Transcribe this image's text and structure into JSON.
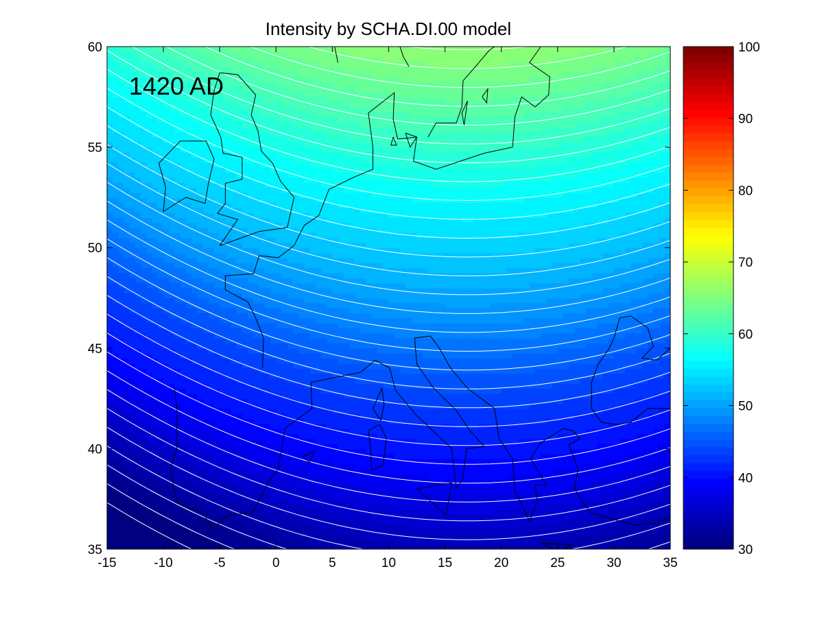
{
  "chart_data": {
    "type": "heatmap",
    "title": "Intensity by SCHA.DI.00 model",
    "annotation": "1420 AD",
    "xlim": [
      -15,
      35
    ],
    "ylim": [
      35,
      60
    ],
    "x_ticks": [
      "-15",
      "-10",
      "-5",
      "0",
      "5",
      "10",
      "15",
      "20",
      "25",
      "30",
      "35"
    ],
    "y_ticks": [
      "35",
      "40",
      "45",
      "50",
      "55",
      "60"
    ],
    "colorbar": {
      "colormap": "jet",
      "range": [
        30,
        100
      ],
      "ticks": [
        "30",
        "40",
        "50",
        "60",
        "70",
        "80",
        "90",
        "100"
      ]
    },
    "contour_interval": 1.2,
    "field_samples": [
      {
        "lon": -15,
        "lat": 35,
        "value": 35
      },
      {
        "lon": 10,
        "lat": 35,
        "value": 41
      },
      {
        "lon": 35,
        "lat": 35,
        "value": 41
      },
      {
        "lon": -15,
        "lat": 45,
        "value": 48
      },
      {
        "lon": 17,
        "lat": 45,
        "value": 51
      },
      {
        "lon": 35,
        "lat": 45,
        "value": 50
      },
      {
        "lon": -15,
        "lat": 50,
        "value": 55
      },
      {
        "lon": 17,
        "lat": 50,
        "value": 58
      },
      {
        "lon": 35,
        "lat": 50,
        "value": 57
      },
      {
        "lon": -15,
        "lat": 55,
        "value": 61
      },
      {
        "lon": 17,
        "lat": 55,
        "value": 64
      },
      {
        "lon": -15,
        "lat": 60,
        "value": 67
      },
      {
        "lon": 17,
        "lat": 60,
        "value": 69
      },
      {
        "lon": 35,
        "lat": 60,
        "value": 68
      }
    ],
    "coastlines": [
      [
        [
          -8,
          52.5
        ],
        [
          -10,
          51.8
        ],
        [
          -9.8,
          53
        ],
        [
          -10.4,
          54.2
        ],
        [
          -8.5,
          55.3
        ],
        [
          -6.2,
          55.3
        ],
        [
          -5.5,
          54.4
        ],
        [
          -6,
          53.2
        ],
        [
          -6.3,
          52.2
        ],
        [
          -8,
          52.5
        ]
      ],
      [
        [
          -5,
          50.1
        ],
        [
          -3.5,
          50.4
        ],
        [
          -1.5,
          50.8
        ],
        [
          1,
          51
        ],
        [
          1.6,
          52.5
        ],
        [
          0.4,
          53.3
        ],
        [
          -0.3,
          54.2
        ],
        [
          -1.3,
          54.8
        ],
        [
          -1.6,
          55.8
        ],
        [
          -2.2,
          56.6
        ],
        [
          -1.8,
          57.6
        ],
        [
          -3.4,
          58.6
        ],
        [
          -5,
          58.7
        ],
        [
          -5.5,
          57.8
        ],
        [
          -5.8,
          56.6
        ],
        [
          -4.9,
          55.5
        ],
        [
          -4.7,
          54.7
        ],
        [
          -3,
          54.5
        ],
        [
          -3,
          53.4
        ],
        [
          -4.5,
          53.2
        ],
        [
          -4.5,
          52.2
        ],
        [
          -5.2,
          51.7
        ],
        [
          -3.4,
          51.4
        ],
        [
          -5,
          50.1
        ]
      ],
      [
        [
          -9,
          43
        ],
        [
          -8.8,
          42
        ],
        [
          -8.8,
          40
        ],
        [
          -9.4,
          39
        ],
        [
          -8.8,
          37.3
        ],
        [
          -6.5,
          36.8
        ],
        [
          -5.6,
          36
        ],
        [
          -4.3,
          36.7
        ],
        [
          -2.1,
          36.8
        ],
        [
          -0.5,
          38.5
        ],
        [
          0.2,
          39
        ],
        [
          0.8,
          41
        ],
        [
          3.2,
          42
        ],
        [
          3.1,
          43.3
        ],
        [
          4.9,
          43.5
        ],
        [
          7.5,
          43.8
        ],
        [
          8.8,
          44.4
        ],
        [
          10.1,
          44
        ],
        [
          10.6,
          42.9
        ],
        [
          12.4,
          41.7
        ],
        [
          15.6,
          40
        ],
        [
          16,
          38
        ],
        [
          16.6,
          38.5
        ],
        [
          16.9,
          40
        ],
        [
          18.5,
          40.1
        ],
        [
          17.2,
          40.9
        ],
        [
          16,
          41.9
        ],
        [
          14,
          43
        ],
        [
          12.5,
          44.2
        ],
        [
          12.3,
          45.5
        ],
        [
          13.7,
          45.6
        ],
        [
          14.5,
          45
        ],
        [
          15.5,
          44
        ],
        [
          17,
          43
        ],
        [
          19.4,
          42
        ],
        [
          19.8,
          40.5
        ],
        [
          21,
          39.5
        ],
        [
          21.2,
          37.9
        ],
        [
          22.5,
          36.4
        ],
        [
          23.2,
          37.4
        ],
        [
          23,
          38.2
        ],
        [
          24,
          38.2
        ],
        [
          22.6,
          39.5
        ],
        [
          23.5,
          40.3
        ],
        [
          25.5,
          41
        ],
        [
          26.3,
          40.9
        ],
        [
          27,
          40.5
        ],
        [
          26,
          40.2
        ],
        [
          26.8,
          39
        ],
        [
          26.5,
          38
        ],
        [
          27.4,
          37.2
        ],
        [
          28,
          36.8
        ],
        [
          30.5,
          36.4
        ],
        [
          32,
          36.2
        ],
        [
          33.8,
          36.3
        ],
        [
          35,
          36.6
        ]
      ],
      [
        [
          -1.2,
          44
        ],
        [
          -1.1,
          45.5
        ],
        [
          -1.8,
          46.5
        ],
        [
          -2.5,
          47.3
        ],
        [
          -4.5,
          47.9
        ],
        [
          -4.5,
          48.6
        ],
        [
          -2,
          48.7
        ],
        [
          -1.5,
          49.6
        ],
        [
          0.2,
          49.5
        ],
        [
          1.6,
          50.1
        ],
        [
          2.5,
          51.1
        ],
        [
          3.8,
          51.6
        ],
        [
          4.7,
          52.9
        ],
        [
          6.9,
          53.5
        ],
        [
          8.6,
          53.9
        ],
        [
          8.6,
          55
        ],
        [
          8.2,
          56.7
        ],
        [
          10.5,
          57.7
        ],
        [
          10.4,
          56.4
        ],
        [
          10.8,
          55.4
        ],
        [
          12.5,
          55.5
        ],
        [
          12.2,
          54.3
        ],
        [
          14.2,
          53.9
        ],
        [
          18.5,
          54.7
        ],
        [
          21,
          55
        ],
        [
          21.2,
          56.5
        ],
        [
          21.8,
          57.5
        ],
        [
          23,
          57
        ],
        [
          24.2,
          57.6
        ],
        [
          24.3,
          58.5
        ],
        [
          22.5,
          59.2
        ],
        [
          23.5,
          60
        ]
      ],
      [
        [
          30,
          45.5
        ],
        [
          30.5,
          46.5
        ],
        [
          31.5,
          46.6
        ],
        [
          33,
          46
        ],
        [
          33.5,
          45.1
        ],
        [
          32.5,
          44.5
        ],
        [
          33.8,
          44.4
        ],
        [
          35,
          45
        ]
      ],
      [
        [
          30,
          45.5
        ],
        [
          29.6,
          45
        ],
        [
          28.6,
          44.2
        ],
        [
          28,
          43.3
        ],
        [
          28,
          42
        ],
        [
          28.9,
          41.3
        ],
        [
          30.3,
          41.2
        ],
        [
          31.5,
          41.3
        ],
        [
          33,
          42
        ],
        [
          35,
          42
        ]
      ],
      [
        [
          5.5,
          59.2
        ],
        [
          5.2,
          60
        ]
      ],
      [
        [
          11.8,
          59
        ],
        [
          11.3,
          59.5
        ],
        [
          11,
          60
        ]
      ],
      [
        [
          13.5,
          55.5
        ],
        [
          14.2,
          56.2
        ],
        [
          16,
          56.2
        ],
        [
          16.5,
          57
        ],
        [
          16.6,
          58.3
        ],
        [
          17.7,
          59
        ],
        [
          18.9,
          59.8
        ],
        [
          19.4,
          60
        ]
      ],
      [
        [
          8.2,
          40.9
        ],
        [
          9.2,
          41.2
        ],
        [
          9.8,
          40.5
        ],
        [
          9.5,
          39.2
        ],
        [
          8.5,
          38.9
        ],
        [
          8.4,
          40
        ],
        [
          8.2,
          40.9
        ]
      ],
      [
        [
          8.6,
          42
        ],
        [
          9.4,
          43
        ],
        [
          9.6,
          42.2
        ],
        [
          9.3,
          41.4
        ],
        [
          8.6,
          42
        ]
      ],
      [
        [
          12.5,
          38
        ],
        [
          15.6,
          38.3
        ],
        [
          15.1,
          36.7
        ],
        [
          12.5,
          38
        ]
      ],
      [
        [
          23.5,
          35.3
        ],
        [
          26.3,
          35.2
        ],
        [
          25,
          34.9
        ],
        [
          23.5,
          35.3
        ]
      ],
      [
        [
          2.4,
          39.6
        ],
        [
          3.4,
          39.9
        ],
        [
          3,
          39.3
        ],
        [
          2.4,
          39.6
        ]
      ],
      [
        [
          10.4,
          55.5
        ],
        [
          10.7,
          55.1
        ],
        [
          10.2,
          55.1
        ],
        [
          10.4,
          55.5
        ]
      ],
      [
        [
          11.5,
          55.7
        ],
        [
          12.5,
          55.5
        ],
        [
          11.9,
          55
        ],
        [
          11.5,
          55.7
        ]
      ],
      [
        [
          18.3,
          57.5
        ],
        [
          18.8,
          57.9
        ],
        [
          18.7,
          57.2
        ],
        [
          18.3,
          57.5
        ]
      ],
      [
        [
          16.5,
          56.7
        ],
        [
          17,
          57.3
        ],
        [
          16.7,
          56.1
        ],
        [
          16.5,
          56.7
        ]
      ]
    ]
  }
}
